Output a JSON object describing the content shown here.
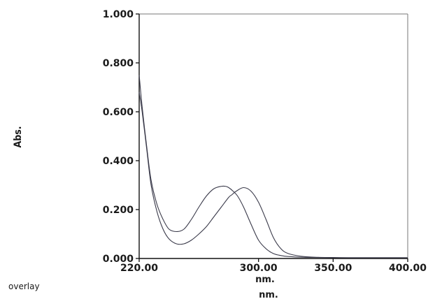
{
  "chart_data": {
    "type": "line",
    "ylabel": "Abs.",
    "xlabel": "nm.",
    "footer_left": "overlay",
    "footer_right": "nm.",
    "xlim": [
      220,
      400
    ],
    "ylim": [
      0,
      1
    ],
    "x_ticks": [
      220,
      300,
      350,
      400
    ],
    "x_tick_labels": [
      "220.00",
      "300.00",
      "350.00",
      "400.00"
    ],
    "y_ticks": [
      0,
      0.2,
      0.4,
      0.6,
      0.8,
      1.0
    ],
    "y_tick_labels": [
      "0.000",
      "0.200",
      "0.400",
      "0.600",
      "0.800",
      "1.000"
    ],
    "grid": false,
    "series": [
      {
        "x": [
          220,
          222,
          225,
          228,
          232,
          236,
          240,
          245,
          250,
          255,
          260,
          265,
          270,
          275,
          280,
          282,
          285,
          290,
          295,
          300,
          305,
          310,
          315,
          320,
          330,
          340,
          350,
          360,
          370,
          380,
          390,
          400
        ],
        "y": [
          0.68,
          0.6,
          0.45,
          0.3,
          0.19,
          0.12,
          0.08,
          0.06,
          0.06,
          0.075,
          0.1,
          0.13,
          0.17,
          0.21,
          0.25,
          0.26,
          0.275,
          0.29,
          0.275,
          0.23,
          0.16,
          0.085,
          0.04,
          0.02,
          0.008,
          0.005,
          0.004,
          0.003,
          0.003,
          0.003,
          0.003,
          0.003
        ]
      },
      {
        "x": [
          220,
          222,
          225,
          228,
          232,
          236,
          240,
          245,
          250,
          255,
          260,
          265,
          270,
          275,
          278,
          280,
          283,
          286,
          290,
          295,
          300,
          305,
          310,
          315,
          320,
          330,
          340,
          350,
          360,
          370,
          380,
          390,
          400
        ],
        "y": [
          0.75,
          0.62,
          0.46,
          0.32,
          0.22,
          0.16,
          0.12,
          0.11,
          0.12,
          0.16,
          0.21,
          0.255,
          0.285,
          0.295,
          0.295,
          0.29,
          0.275,
          0.255,
          0.21,
          0.14,
          0.075,
          0.04,
          0.02,
          0.012,
          0.008,
          0.005,
          0.004,
          0.003,
          0.003,
          0.003,
          0.003,
          0.003,
          0.003
        ]
      }
    ]
  }
}
